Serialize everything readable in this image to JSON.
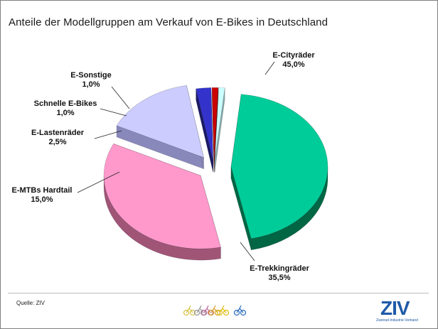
{
  "title": "Anteile der Modellgruppen am Verkauf von E-Bikes in Deutschland",
  "source": "Quelle: ZIV",
  "logo": {
    "text": "ZIV",
    "subtitle": "Zweirad-Industrie-Verband"
  },
  "chart_data": {
    "type": "pie",
    "title": "Anteile der Modellgruppen am Verkauf von E-Bikes in Deutschland",
    "unit": "%",
    "style": "3D exploded pie",
    "legend": "none (labels next to slices)",
    "slices": [
      {
        "name": "E-Cityräder",
        "value": 45.0,
        "value_label": "45,0%",
        "color": "#00cc99",
        "side_color": "#006644"
      },
      {
        "name": "E-Trekkingräder",
        "value": 35.5,
        "value_label": "35,5%",
        "color": "#ff99cc",
        "side_color": "#a05577"
      },
      {
        "name": "E-MTBs Hardtail",
        "value": 15.0,
        "value_label": "15,0%",
        "color": "#ccccff",
        "side_color": "#8888bb"
      },
      {
        "name": "E-Lastenräder",
        "value": 2.5,
        "value_label": "2,5%",
        "color": "#3333cc",
        "side_color": "#1a1a66"
      },
      {
        "name": "Schnelle E-Bikes",
        "value": 1.0,
        "value_label": "1,0%",
        "color": "#cc0000",
        "side_color": "#660000"
      },
      {
        "name": "E-Sonstige",
        "value": 1.0,
        "value_label": "1,0%",
        "color": "#ccffff",
        "side_color": "#88aaaa"
      }
    ]
  }
}
